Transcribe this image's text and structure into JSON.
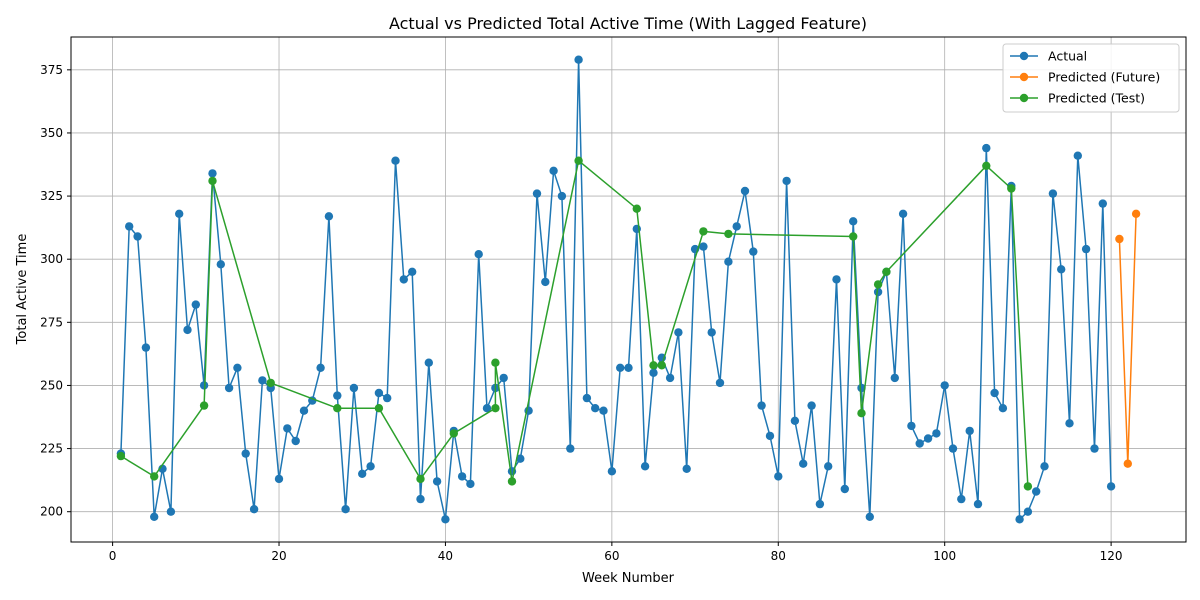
{
  "chart_data": {
    "type": "line",
    "title": "Actual vs Predicted Total Active Time (With Lagged Feature)",
    "xlabel": "Week Number",
    "ylabel": "Total Active Time",
    "xlim": [
      -5,
      129
    ],
    "ylim": [
      188,
      388
    ],
    "xticks": [
      0,
      20,
      40,
      60,
      80,
      100,
      120
    ],
    "yticks": [
      200,
      225,
      250,
      275,
      300,
      325,
      350,
      375
    ],
    "grid": true,
    "legend": "top-right",
    "series": [
      {
        "name": "Actual",
        "color": "#1f77b4",
        "x": [
          1,
          2,
          3,
          4,
          5,
          6,
          7,
          8,
          9,
          10,
          11,
          12,
          13,
          14,
          15,
          16,
          17,
          18,
          19,
          20,
          21,
          22,
          23,
          24,
          25,
          26,
          27,
          28,
          29,
          30,
          31,
          32,
          33,
          34,
          35,
          36,
          37,
          38,
          39,
          40,
          41,
          42,
          43,
          44,
          45,
          46,
          47,
          48,
          49,
          50,
          51,
          52,
          53,
          54,
          55,
          56,
          57,
          58,
          59,
          60,
          61,
          62,
          63,
          64,
          65,
          66,
          67,
          68,
          69,
          70,
          71,
          72,
          73,
          74,
          75,
          76,
          77,
          78,
          79,
          80,
          81,
          82,
          83,
          84,
          85,
          86,
          87,
          88,
          89,
          90,
          91,
          92,
          93,
          94,
          95,
          96,
          97,
          98,
          99,
          100,
          101,
          102,
          103,
          104,
          105,
          106,
          107,
          108,
          109,
          110,
          111,
          112,
          113,
          114,
          115,
          116,
          117,
          118,
          119,
          120
        ],
        "y": [
          223,
          313,
          309,
          265,
          198,
          217,
          200,
          318,
          272,
          282,
          250,
          334,
          298,
          249,
          257,
          223,
          201,
          252,
          249,
          213,
          233,
          228,
          240,
          244,
          257,
          317,
          246,
          201,
          249,
          215,
          218,
          247,
          245,
          339,
          292,
          295,
          205,
          259,
          212,
          197,
          232,
          214,
          211,
          302,
          241,
          249,
          253,
          216,
          221,
          240,
          326,
          291,
          335,
          325,
          225,
          379,
          245,
          241,
          240,
          216,
          257,
          257,
          312,
          218,
          255,
          261,
          253,
          271,
          217,
          304,
          305,
          271,
          251,
          299,
          313,
          327,
          303,
          242,
          230,
          214,
          331,
          236,
          219,
          242,
          203,
          218,
          292,
          209,
          315,
          249,
          198,
          287,
          295,
          253,
          318,
          234,
          227,
          229,
          231,
          250,
          225,
          205,
          232,
          203,
          344,
          247,
          241,
          329,
          197,
          200,
          208,
          218,
          326,
          296,
          235,
          341,
          304,
          225,
          322,
          210
        ]
      },
      {
        "name": "Predicted (Future)",
        "color": "#ff7f0e",
        "x": [
          121,
          122,
          123
        ],
        "y": [
          308,
          219,
          318
        ]
      },
      {
        "name": "Predicted (Test)",
        "color": "#2ca02c",
        "x": [
          1,
          5,
          11,
          12,
          19,
          27,
          32,
          37,
          41,
          46,
          46,
          48,
          56,
          63,
          65,
          66,
          71,
          74,
          89,
          90,
          92,
          93,
          105,
          108,
          110
        ],
        "y": [
          222,
          214,
          242,
          331,
          251,
          241,
          241,
          213,
          231,
          241,
          259,
          212,
          339,
          320,
          258,
          258,
          311,
          310,
          309,
          239,
          290,
          295,
          337,
          328,
          210
        ]
      }
    ]
  }
}
